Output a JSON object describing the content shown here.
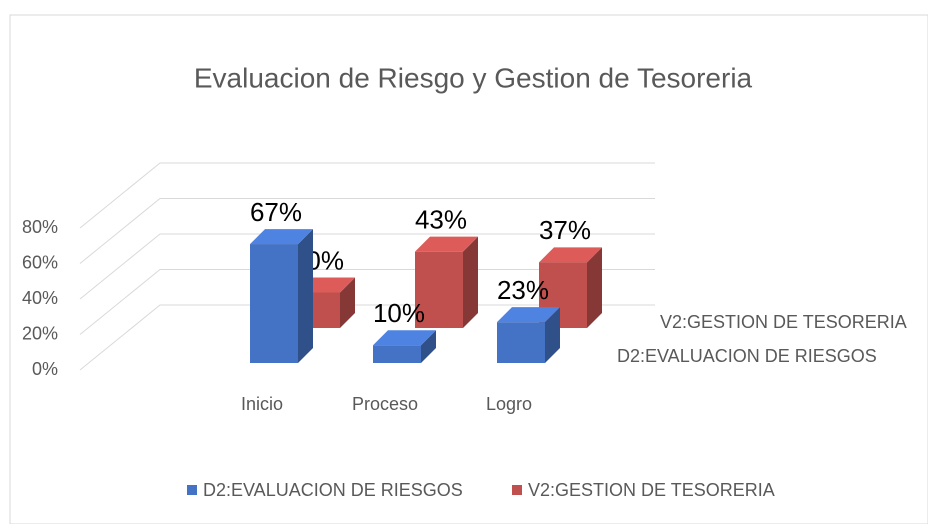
{
  "chart_data": {
    "type": "bar3d",
    "title": "Evaluacion de Riesgo y Gestion de Tesoreria",
    "categories": [
      "Inicio",
      "Proceso",
      "Logro"
    ],
    "series": [
      {
        "name": "D2:EVALUACION DE RIESGOS",
        "color": "#4472c4",
        "values": [
          67,
          10,
          23
        ],
        "value_labels": [
          "67%",
          "10%",
          "23%"
        ]
      },
      {
        "name": "V2:GESTION DE TESORERIA",
        "color": "#c0504d",
        "values": [
          20,
          43,
          37
        ],
        "value_labels": [
          "20%",
          "43%",
          "37%"
        ]
      }
    ],
    "ylim": [
      0,
      80
    ],
    "yticks": [
      {
        "value": 0,
        "label": "0%"
      },
      {
        "value": 20,
        "label": "20%"
      },
      {
        "value": 40,
        "label": "40%"
      },
      {
        "value": 60,
        "label": "60%"
      },
      {
        "value": 80,
        "label": "80%"
      }
    ],
    "grid": true,
    "legend": "bottom"
  }
}
